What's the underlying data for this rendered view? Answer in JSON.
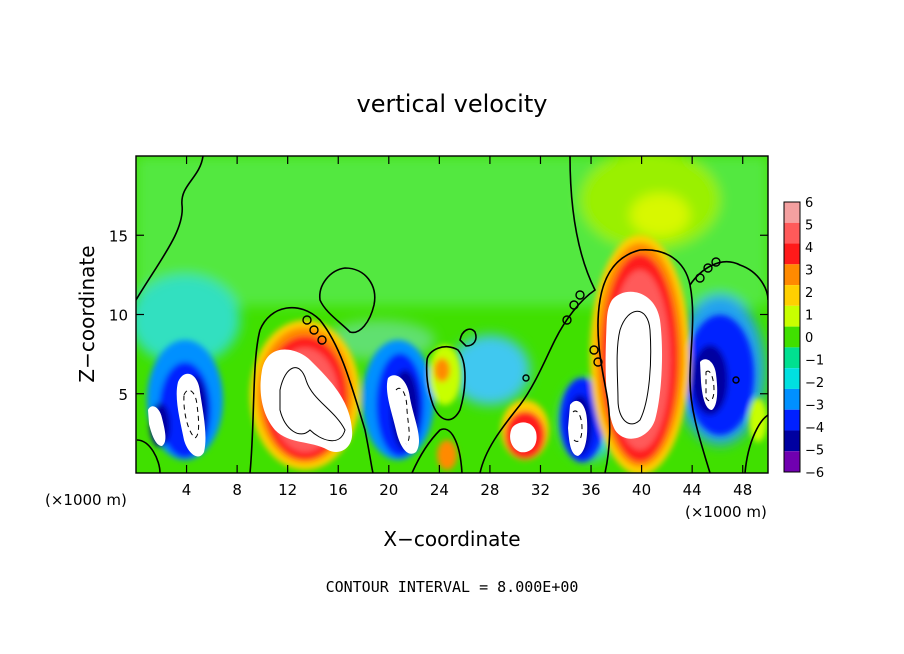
{
  "chart_data": {
    "type": "heatmap",
    "title": "vertical velocity",
    "xlabel": "X−coordinate",
    "ylabel": "Z−coordinate",
    "x_unit_left": "(×1000 m)",
    "x_unit_right": "(×1000 m)",
    "footer": "CONTOUR INTERVAL = 8.000E+00",
    "xlim": [
      0,
      50
    ],
    "ylim": [
      0,
      20
    ],
    "x_ticks": [
      "4",
      "8",
      "12",
      "16",
      "20",
      "24",
      "28",
      "32",
      "36",
      "40",
      "44",
      "48"
    ],
    "x_tick_values": [
      4,
      8,
      12,
      16,
      20,
      24,
      28,
      32,
      36,
      40,
      44,
      48
    ],
    "y_ticks": [
      "5",
      "10",
      "15"
    ],
    "y_tick_values": [
      5,
      10,
      15
    ],
    "colorbar": {
      "labels": [
        "6",
        "5",
        "4",
        "3",
        "2",
        "1",
        "0",
        "−1",
        "−2",
        "−3",
        "−4",
        "−5",
        "−6"
      ],
      "levels": [
        6,
        5,
        4,
        3,
        2,
        1,
        0,
        -1,
        -2,
        -3,
        -4,
        -5,
        -6
      ],
      "colors": [
        "#f4a0a0",
        "#ff5a5a",
        "#ff1a1a",
        "#ff8a00",
        "#ffd000",
        "#c8ff00",
        "#40e000",
        "#00e090",
        "#00e0e0",
        "#0090ff",
        "#0020ff",
        "#0000a0",
        "#7000b0"
      ]
    },
    "cells": [
      {
        "x": 2.5,
        "z": 4.0,
        "w": -5.5
      },
      {
        "x": 5.0,
        "z": 4.5,
        "w": -6.0
      },
      {
        "x": 13.5,
        "z": 4.5,
        "w": 7.5
      },
      {
        "x": 20.5,
        "z": 4.0,
        "w": -6.5
      },
      {
        "x": 24.5,
        "z": 6.5,
        "w": 3.0
      },
      {
        "x": 30.5,
        "z": 2.0,
        "w": 5.0
      },
      {
        "x": 34.5,
        "z": 3.0,
        "w": -6.0
      },
      {
        "x": 40.0,
        "z": 7.5,
        "w": 8.5
      },
      {
        "x": 46.0,
        "z": 6.0,
        "w": -5.5
      },
      {
        "x": 48.5,
        "z": 3.0,
        "w": 1.5
      }
    ]
  }
}
